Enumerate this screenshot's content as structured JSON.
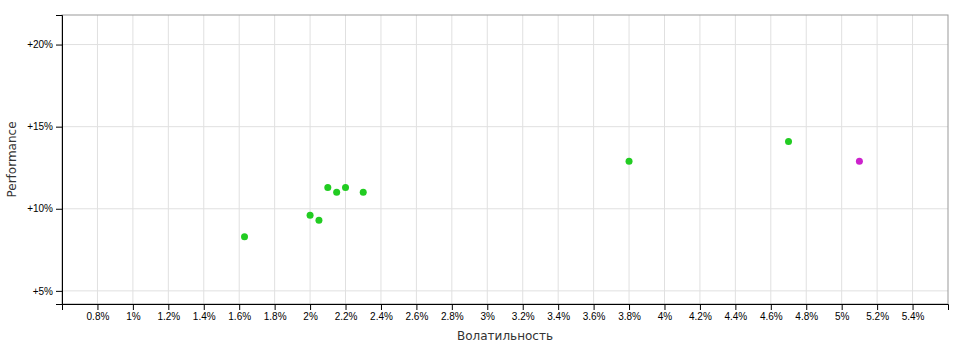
{
  "chart_data": {
    "type": "scatter",
    "xlabel": "Волатильность",
    "ylabel": "Performance",
    "xlim": [
      0.006,
      0.056
    ],
    "ylim": [
      0.042,
      0.218
    ],
    "xticks": [
      {
        "value": 0.008,
        "label": "0.8%"
      },
      {
        "value": 0.01,
        "label": "1%"
      },
      {
        "value": 0.012,
        "label": "1.2%"
      },
      {
        "value": 0.014,
        "label": "1.4%"
      },
      {
        "value": 0.016,
        "label": "1.6%"
      },
      {
        "value": 0.018,
        "label": "1.8%"
      },
      {
        "value": 0.02,
        "label": "2%"
      },
      {
        "value": 0.022,
        "label": "2.2%"
      },
      {
        "value": 0.024,
        "label": "2.4%"
      },
      {
        "value": 0.026,
        "label": "2.6%"
      },
      {
        "value": 0.028,
        "label": "2.8%"
      },
      {
        "value": 0.03,
        "label": "3%"
      },
      {
        "value": 0.032,
        "label": "3.2%"
      },
      {
        "value": 0.034,
        "label": "3.4%"
      },
      {
        "value": 0.036,
        "label": "3.6%"
      },
      {
        "value": 0.038,
        "label": "3.8%"
      },
      {
        "value": 0.04,
        "label": "4%"
      },
      {
        "value": 0.042,
        "label": "4.2%"
      },
      {
        "value": 0.044,
        "label": "4.4%"
      },
      {
        "value": 0.046,
        "label": "4.6%"
      },
      {
        "value": 0.048,
        "label": "4.8%"
      },
      {
        "value": 0.05,
        "label": "5%"
      },
      {
        "value": 0.052,
        "label": "5.2%"
      },
      {
        "value": 0.054,
        "label": "5.4%"
      }
    ],
    "yticks": [
      {
        "value": 0.05,
        "label": "+5%"
      },
      {
        "value": 0.1,
        "label": "+10%"
      },
      {
        "value": 0.15,
        "label": "+15%"
      },
      {
        "value": 0.2,
        "label": "+20%"
      }
    ],
    "grid": true,
    "series": [
      {
        "color": "#22cc22",
        "x": [
          0.0163,
          0.02,
          0.0205,
          0.021,
          0.0215,
          0.022,
          0.023,
          0.038,
          0.047
        ],
        "values": [
          0.083,
          0.096,
          0.093,
          0.113,
          0.11,
          0.113,
          0.11,
          0.129,
          0.141
        ]
      },
      {
        "color": "#cc22cc",
        "x": [
          0.051
        ],
        "values": [
          0.129
        ]
      }
    ]
  }
}
